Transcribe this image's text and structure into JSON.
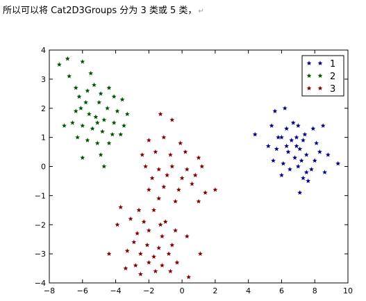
{
  "caption": "所以可以将 Cat2D3Groups 分为 3 类或 5 类，",
  "caption_return_glyph": "↵",
  "chart_data": {
    "type": "scatter",
    "title": "",
    "xlabel": "",
    "ylabel": "",
    "xlim": [
      -8,
      10
    ],
    "ylim": [
      -4,
      4
    ],
    "xticks": [
      "−8",
      "−6",
      "−4",
      "−2",
      "0",
      "2",
      "4",
      "6",
      "8",
      "10"
    ],
    "yticks": [
      "4",
      "3",
      "2",
      "1",
      "0",
      "−1",
      "−2",
      "−3",
      "−4"
    ],
    "grid": false,
    "legend_position": "top-right",
    "marker": "star",
    "series": [
      {
        "name": "1",
        "color": "#000080",
        "points": [
          [
            6.2,
            2.0
          ],
          [
            5.6,
            1.9
          ],
          [
            5.4,
            1.4
          ],
          [
            6.3,
            1.3
          ],
          [
            6.7,
            1.5
          ],
          [
            7.0,
            1.4
          ],
          [
            6.0,
            1.0
          ],
          [
            6.6,
            0.9
          ],
          [
            6.9,
            0.7
          ],
          [
            7.3,
            0.9
          ],
          [
            7.9,
            1.3
          ],
          [
            8.5,
            1.4
          ],
          [
            5.7,
            0.6
          ],
          [
            6.4,
            0.5
          ],
          [
            6.8,
            0.3
          ],
          [
            7.1,
            0.6
          ],
          [
            7.5,
            0.4
          ],
          [
            8.0,
            0.2
          ],
          [
            8.8,
            0.4
          ],
          [
            9.4,
            0.1
          ],
          [
            5.2,
            0.7
          ],
          [
            6.1,
            0.1
          ],
          [
            6.5,
            -0.1
          ],
          [
            7.0,
            0.0
          ],
          [
            7.5,
            -0.2
          ],
          [
            7.8,
            -0.1
          ],
          [
            8.6,
            -0.2
          ],
          [
            6.0,
            -0.3
          ],
          [
            7.3,
            -0.4
          ],
          [
            7.6,
            -0.5
          ],
          [
            7.1,
            -0.9
          ],
          [
            4.4,
            1.1
          ],
          [
            5.8,
            1.0
          ],
          [
            7.4,
            1.1
          ],
          [
            8.1,
            0.8
          ],
          [
            6.3,
            0.7
          ],
          [
            6.9,
            1.0
          ],
          [
            7.2,
            0.2
          ],
          [
            8.3,
            0.5
          ],
          [
            5.5,
            0.2
          ]
        ]
      },
      {
        "name": "2",
        "color": "#005000",
        "points": [
          [
            -7.4,
            3.5
          ],
          [
            -6.9,
            3.7
          ],
          [
            -6.0,
            3.6
          ],
          [
            -5.5,
            3.2
          ],
          [
            -6.8,
            3.1
          ],
          [
            -6.4,
            2.7
          ],
          [
            -5.7,
            2.6
          ],
          [
            -4.9,
            2.5
          ],
          [
            -4.1,
            2.4
          ],
          [
            -3.6,
            2.3
          ],
          [
            -6.2,
            2.4
          ],
          [
            -5.8,
            2.2
          ],
          [
            -5.0,
            2.2
          ],
          [
            -4.5,
            2.0
          ],
          [
            -3.9,
            1.9
          ],
          [
            -3.3,
            1.8
          ],
          [
            -6.4,
            1.9
          ],
          [
            -5.6,
            1.8
          ],
          [
            -5.2,
            1.7
          ],
          [
            -4.7,
            1.6
          ],
          [
            -4.1,
            1.5
          ],
          [
            -3.5,
            1.4
          ],
          [
            -6.6,
            1.5
          ],
          [
            -6.0,
            1.4
          ],
          [
            -5.4,
            1.3
          ],
          [
            -4.8,
            1.2
          ],
          [
            -4.2,
            1.1
          ],
          [
            -3.7,
            1.1
          ],
          [
            -7.1,
            1.4
          ],
          [
            -6.3,
            1.0
          ],
          [
            -5.7,
            0.9
          ],
          [
            -5.1,
            0.8
          ],
          [
            -4.4,
            0.8
          ],
          [
            -6.0,
            0.3
          ],
          [
            -4.9,
            0.4
          ],
          [
            -4.7,
            0.0
          ],
          [
            -5.3,
            2.8
          ],
          [
            -4.4,
            2.7
          ],
          [
            -6.1,
            2.0
          ],
          [
            -5.1,
            1.5
          ]
        ]
      },
      {
        "name": "3",
        "color": "#800000",
        "points": [
          [
            -1.3,
            1.8
          ],
          [
            -0.6,
            1.6
          ],
          [
            -2.0,
            0.9
          ],
          [
            -1.1,
            1.0
          ],
          [
            -0.1,
            0.8
          ],
          [
            -2.4,
            0.4
          ],
          [
            -1.6,
            0.5
          ],
          [
            -0.7,
            0.4
          ],
          [
            0.2,
            0.5
          ],
          [
            1.0,
            0.3
          ],
          [
            -2.2,
            0.0
          ],
          [
            -1.4,
            -0.1
          ],
          [
            -0.6,
            0.0
          ],
          [
            0.3,
            -0.1
          ],
          [
            1.2,
            0.0
          ],
          [
            -1.8,
            -0.4
          ],
          [
            -0.9,
            -0.3
          ],
          [
            0.0,
            -0.4
          ],
          [
            0.8,
            -0.3
          ],
          [
            -2.0,
            -0.8
          ],
          [
            -1.1,
            -0.7
          ],
          [
            -0.2,
            -0.8
          ],
          [
            0.6,
            -0.6
          ],
          [
            1.4,
            -0.9
          ],
          [
            2.0,
            -0.8
          ],
          [
            -1.4,
            -1.1
          ],
          [
            -0.4,
            -1.2
          ],
          [
            1.0,
            -1.2
          ],
          [
            -2.6,
            -1.5
          ],
          [
            -1.7,
            -1.5
          ],
          [
            -3.7,
            -1.4
          ],
          [
            -3.1,
            -1.8
          ],
          [
            -2.3,
            -1.9
          ],
          [
            -1.3,
            -2.0
          ],
          [
            -3.9,
            -2.0
          ],
          [
            -2.7,
            -2.3
          ],
          [
            -2.0,
            -2.2
          ],
          [
            -1.2,
            -2.4
          ],
          [
            -0.4,
            -2.2
          ],
          [
            -2.9,
            -2.6
          ],
          [
            -2.1,
            -2.7
          ],
          [
            -1.4,
            -2.8
          ],
          [
            -0.6,
            -2.7
          ],
          [
            -3.3,
            -2.9
          ],
          [
            -2.5,
            -3.0
          ],
          [
            -1.7,
            -3.1
          ],
          [
            -0.8,
            -3.0
          ],
          [
            -4.4,
            -3.0
          ],
          [
            -2.8,
            -3.4
          ],
          [
            -2.0,
            -3.3
          ],
          [
            -1.2,
            -3.4
          ],
          [
            -0.3,
            -3.3
          ],
          [
            -2.5,
            -3.7
          ],
          [
            -1.6,
            -3.6
          ],
          [
            -0.7,
            -3.6
          ],
          [
            0.4,
            -3.8
          ],
          [
            1.1,
            -3.0
          ],
          [
            0.3,
            -2.4
          ],
          [
            -1.0,
            -1.9
          ],
          [
            -3.4,
            -3.5
          ]
        ]
      }
    ]
  }
}
